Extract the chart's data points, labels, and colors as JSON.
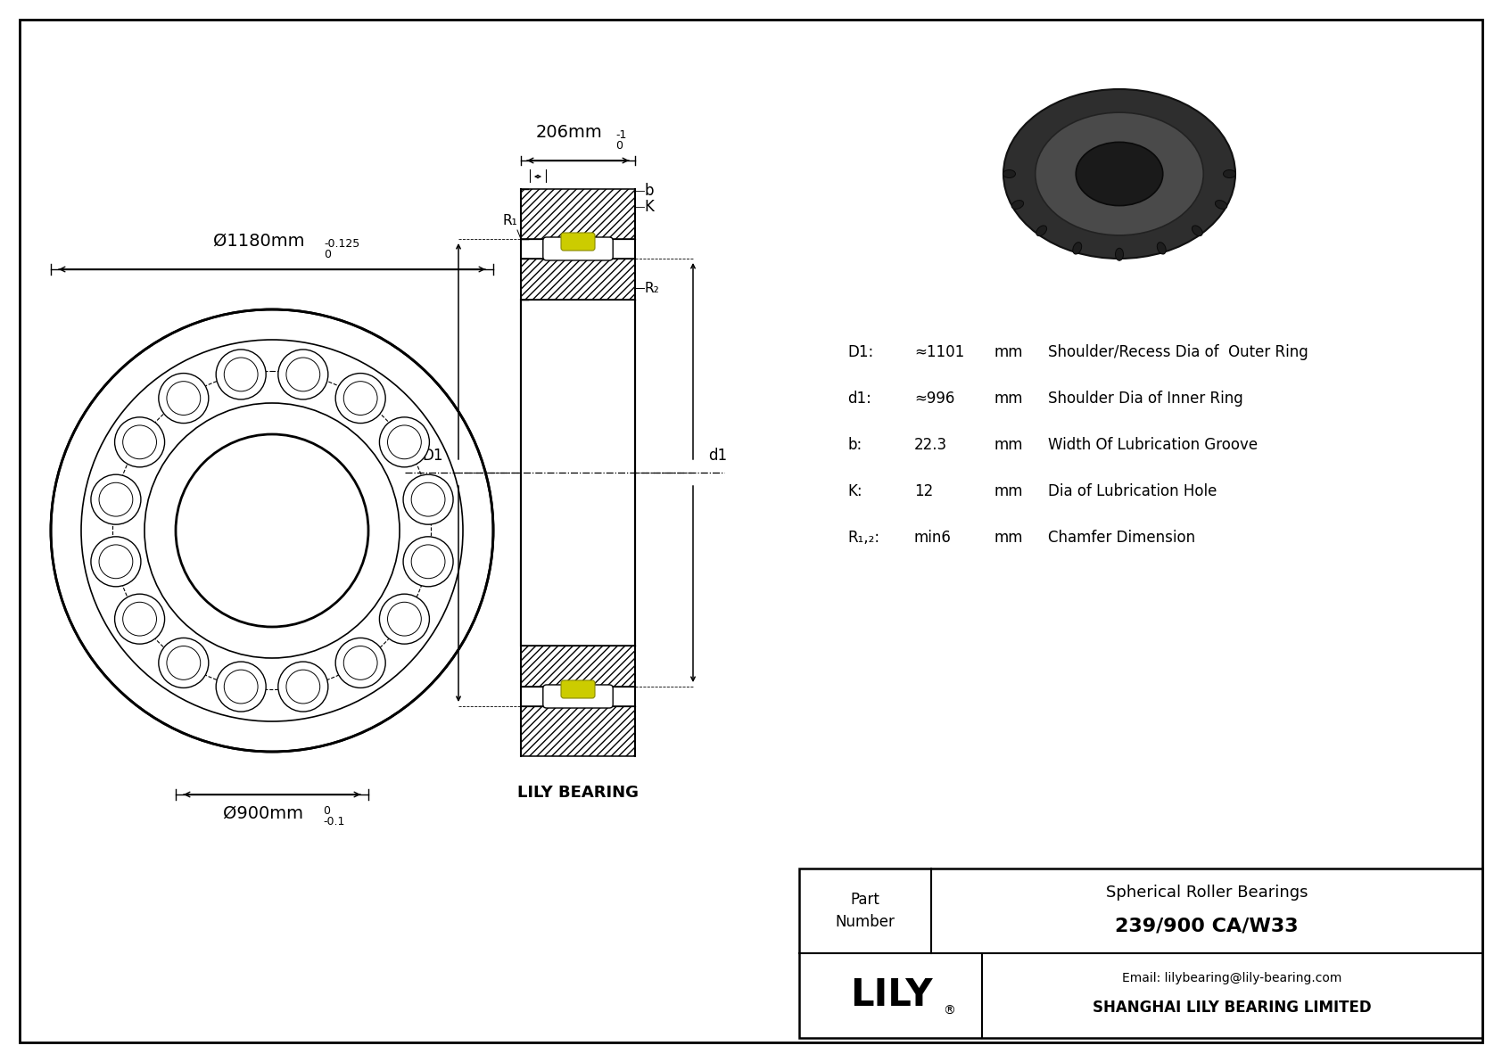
{
  "bg_color": "#ffffff",
  "lc": "#000000",
  "yellow_color": "#cccc00",
  "brand": "LILY",
  "company": "SHANGHAI LILY BEARING LIMITED",
  "email": "Email: lilybearing@lily-bearing.com",
  "title": "239/900 CA/W33",
  "subtitle": "Spherical Roller Bearings",
  "outer_dim_text": "Ø1180mm",
  "outer_tol_top": "0",
  "outer_tol_bot": "-0.125",
  "width_dim_text": "206mm",
  "width_tol_top": "0",
  "width_tol_bot": "-1",
  "inner_dim_text": "Ø900mm",
  "inner_tol_top": "0",
  "inner_tol_bot": "-0.1",
  "specs": [
    [
      "D1:",
      "≈1101",
      "mm",
      "Shoulder/Recess Dia of  Outer Ring"
    ],
    [
      "d1:",
      "≈996",
      "mm",
      "Shoulder Dia of Inner Ring"
    ],
    [
      "b:",
      "22.3",
      "mm",
      "Width Of Lubrication Groove"
    ],
    [
      "K:",
      "12",
      "mm",
      "Dia of Lubrication Hole"
    ],
    [
      "R₁,₂:",
      "min6",
      "mm",
      "Chamfer Dimension"
    ]
  ]
}
